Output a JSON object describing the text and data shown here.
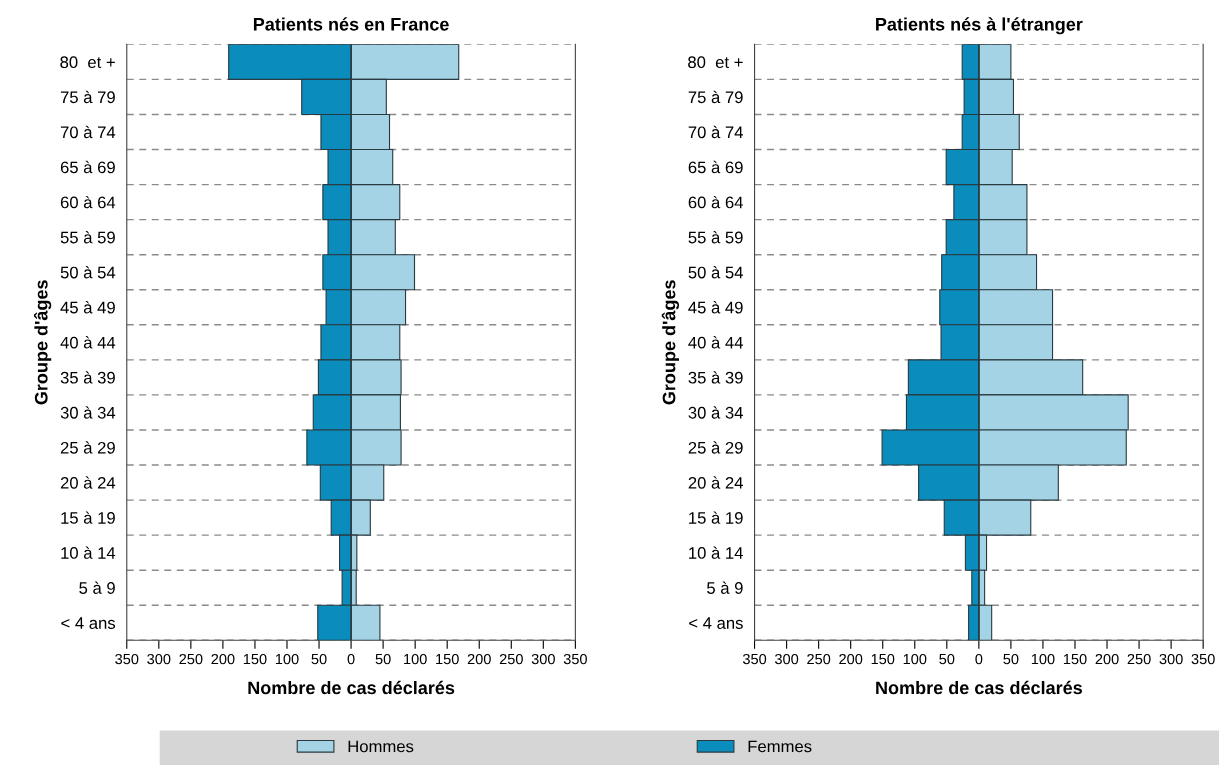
{
  "chart_data": [
    {
      "type": "bar",
      "orientation": "horizontal",
      "title": "Patients nés en France",
      "xlabel": "Nombre de cas déclarés",
      "ylabel": "Groupe d'âges",
      "categories": [
        "80  et +",
        "75 à 79",
        "70 à 74",
        "65 à 69",
        "60 à 64",
        "55 à 59",
        "50 à 54",
        "45 à 49",
        "40 à 44",
        "35 à 39",
        "30 à 34",
        "25 à 29",
        "20 à 24",
        "15 à 19",
        "10 à 14",
        "5 à 9",
        "< 4 ans"
      ],
      "series": [
        {
          "name": "Hommes",
          "color": "#a3d3e4",
          "values": [
            168,
            55,
            60,
            65,
            76,
            69,
            99,
            85,
            76,
            78,
            77,
            78,
            51,
            30,
            9,
            8,
            45
          ]
        },
        {
          "name": "Femmes",
          "color": "#0a8dbd",
          "values": [
            -191,
            -77,
            -47,
            -36,
            -44,
            -36,
            -44,
            -39,
            -47,
            -51,
            -59,
            -69,
            -48,
            -31,
            -18,
            -14,
            -52
          ]
        }
      ],
      "xlim": [
        -350,
        350
      ],
      "xticks": [
        {
          "value": -350,
          "label": "350"
        },
        {
          "value": -300,
          "label": "300"
        },
        {
          "value": -250,
          "label": "250"
        },
        {
          "value": -200,
          "label": "200"
        },
        {
          "value": -150,
          "label": "150"
        },
        {
          "value": -100,
          "label": "100"
        },
        {
          "value": -50,
          "label": "50"
        },
        0,
        50,
        100,
        150,
        200,
        250,
        300,
        350
      ],
      "grid": "y",
      "legend": "bottom",
      "stacked": true
    },
    {
      "type": "bar",
      "orientation": "horizontal",
      "title": "Patients nés à l'étranger",
      "xlabel": "Nombre de cas déclarés",
      "ylabel": "Groupe d'âges",
      "categories": [
        "80  et +",
        "75 à 79",
        "70 à 74",
        "65 à 69",
        "60 à 64",
        "55 à 59",
        "50 à 54",
        "45 à 49",
        "40 à 44",
        "35 à 39",
        "30 à 34",
        "25 à 29",
        "20 à 24",
        "15 à 19",
        "10 à 14",
        "5 à 9",
        "< 4 ans"
      ],
      "series": [
        {
          "name": "Hommes",
          "color": "#a3d3e4",
          "values": [
            50,
            54,
            63,
            52,
            75,
            75,
            90,
            115,
            115,
            162,
            233,
            230,
            124,
            81,
            12,
            9,
            20
          ]
        },
        {
          "name": "Femmes",
          "color": "#0a8dbd",
          "values": [
            -26,
            -23,
            -26,
            -51,
            -39,
            -51,
            -58,
            -61,
            -59,
            -110,
            -113,
            -151,
            -94,
            -54,
            -21,
            -11,
            -16
          ]
        }
      ],
      "xlim": [
        -350,
        350
      ],
      "xticks": [
        {
          "value": -350,
          "label": "350"
        },
        {
          "value": -300,
          "label": "300"
        },
        {
          "value": -250,
          "label": "250"
        },
        {
          "value": -200,
          "label": "200"
        },
        {
          "value": -150,
          "label": "150"
        },
        {
          "value": -100,
          "label": "100"
        },
        {
          "value": -50,
          "label": "50"
        },
        0,
        50,
        100,
        150,
        200,
        250,
        300,
        350
      ],
      "grid": "y",
      "legend": "bottom",
      "stacked": true
    }
  ]
}
